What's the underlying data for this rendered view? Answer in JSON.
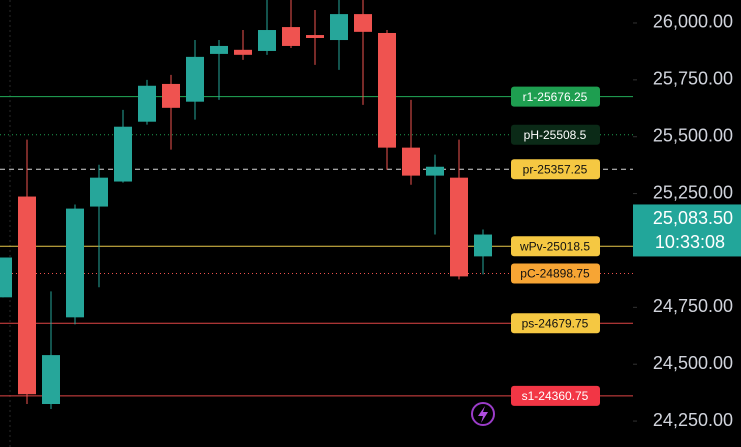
{
  "chart_data": {
    "type": "candlestick",
    "up_color": "#26a69a",
    "down_color": "#ef5350",
    "candles": [
      {
        "open": 24794,
        "high": 24969,
        "low": 24794,
        "close": 24969
      },
      {
        "open": 25237,
        "high": 25487,
        "low": 24325,
        "close": 24368
      },
      {
        "open": 24325,
        "high": 24820,
        "low": 24303,
        "close": 24540
      },
      {
        "open": 24706,
        "high": 25202,
        "low": 24675,
        "close": 25184
      },
      {
        "open": 25193,
        "high": 25377,
        "low": 24838,
        "close": 25320
      },
      {
        "open": 25303,
        "high": 25618,
        "low": 25298,
        "close": 25544
      },
      {
        "open": 25566,
        "high": 25750,
        "low": 25553,
        "close": 25724
      },
      {
        "open": 25732,
        "high": 25772,
        "low": 25443,
        "close": 25627
      },
      {
        "open": 25654,
        "high": 25925,
        "low": 25575,
        "close": 25851
      },
      {
        "open": 25864,
        "high": 25925,
        "low": 25662,
        "close": 25899
      },
      {
        "open": 25882,
        "high": 25969,
        "low": 25838,
        "close": 25860
      },
      {
        "open": 25877,
        "high": 26101,
        "low": 25860,
        "close": 25969
      },
      {
        "open": 25982,
        "high": 26101,
        "low": 25890,
        "close": 25899
      },
      {
        "open": 25947,
        "high": 26057,
        "low": 25816,
        "close": 25934
      },
      {
        "open": 25925,
        "high": 26101,
        "low": 25794,
        "close": 26039
      },
      {
        "open": 26039,
        "high": 26101,
        "low": 25640,
        "close": 25961
      },
      {
        "open": 25956,
        "high": 25969,
        "low": 25355,
        "close": 25452
      },
      {
        "open": 25452,
        "high": 25662,
        "low": 25289,
        "close": 25329
      },
      {
        "open": 25329,
        "high": 25421,
        "low": 25070,
        "close": 25368
      },
      {
        "open": 25320,
        "high": 25487,
        "low": 24873,
        "close": 24886
      },
      {
        "open": 24974,
        "high": 25092,
        "low": 24895,
        "close": 25070
      }
    ],
    "ylim": [
      24136,
      26101
    ],
    "yticks": [
      {
        "value": 26000,
        "label": "26,000.00"
      },
      {
        "value": 25750,
        "label": "25,750.00"
      },
      {
        "value": 25500,
        "label": "25,500.00"
      },
      {
        "value": 25250,
        "label": "25,250.00"
      },
      {
        "value": 24750,
        "label": "24,750.00"
      },
      {
        "value": 24500,
        "label": "24,500.00"
      },
      {
        "value": 24250,
        "label": "24,250.00"
      }
    ],
    "levels": [
      {
        "label": "r1-25676.25",
        "value": 25676.25,
        "line_color": "#22ab5a",
        "style": "solid",
        "box_color": "#1e9e50",
        "text_color": "#ffffff"
      },
      {
        "label": "pH-25508.5",
        "value": 25508.5,
        "line_color": "#1e9e50",
        "style": "dotted",
        "box_color": "#0b2a17",
        "text_color": "#ffffff"
      },
      {
        "label": "pr-25357.25",
        "value": 25357.25,
        "line_color": "#d8d8d8",
        "style": "dashed",
        "box_color": "#f5c842",
        "text_color": "#111111"
      },
      {
        "label": "wPv-25018.5",
        "value": 25018.5,
        "line_color": "#e8c84a",
        "style": "solid",
        "box_color": "#f5c842",
        "text_color": "#111111"
      },
      {
        "label": "pC-24898.75",
        "value": 24898.75,
        "line_color": "#ef5350",
        "style": "dotted",
        "box_color": "#f7a534",
        "text_color": "#111111"
      },
      {
        "label": "ps-24679.75",
        "value": 24679.75,
        "line_color": "#e04545",
        "style": "solid",
        "box_color": "#f5c842",
        "text_color": "#111111"
      },
      {
        "label": "s1-24360.75",
        "value": 24360.75,
        "line_color": "#e04545",
        "style": "solid",
        "box_color": "#f23645",
        "text_color": "#ffffff"
      }
    ],
    "last_price": {
      "value": 25083.5,
      "label": "25,083.50",
      "time": "10:33:08",
      "color": "#22a69a"
    }
  }
}
